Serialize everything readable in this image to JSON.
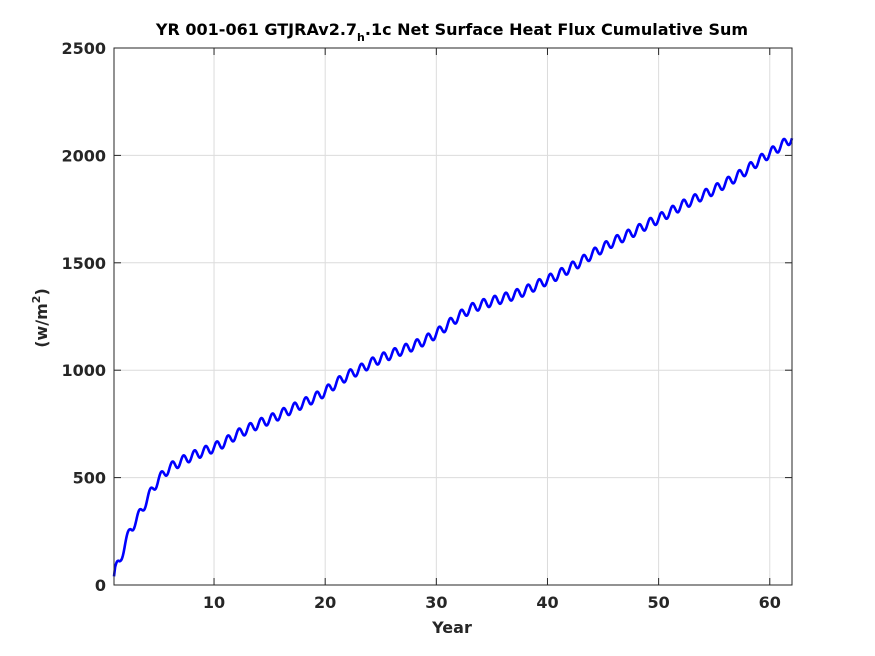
{
  "chart_data": {
    "type": "line",
    "title": {
      "part1": "YR 001-061 GTJRAv2.7",
      "subscript": "h",
      "part2": ".1c Net Surface Heat Flux  Cumulative Sum"
    },
    "xlabel": "Year",
    "ylabel": {
      "prefix": "(w/m",
      "superscript": "2",
      "suffix": ")"
    },
    "xlim": [
      1,
      62
    ],
    "ylim": [
      0,
      2500
    ],
    "xticks": [
      10,
      20,
      30,
      40,
      50,
      60
    ],
    "yticks": [
      0,
      500,
      1000,
      1500,
      2000,
      2500
    ],
    "grid": true,
    "series": [
      {
        "color": "#0000ff",
        "seasonal_amplitude": 22,
        "x": [
          1.0,
          1.1,
          1.5,
          2.0,
          2.5,
          3.0,
          3.5,
          4.0,
          4.5,
          5.0,
          5.5,
          6.0,
          7.0,
          8.0,
          9.0,
          10.0,
          11.0,
          12.0,
          13.0,
          14.0,
          15.0,
          16.0,
          17.0,
          18.0,
          19.0,
          20.0,
          21.0,
          22.0,
          23.0,
          24.0,
          25.0,
          26.0,
          27.0,
          28.0,
          29.0,
          30.0,
          31.0,
          32.0,
          33.0,
          34.0,
          35.0,
          36.0,
          37.0,
          38.0,
          39.0,
          40.0,
          41.0,
          42.0,
          43.0,
          44.0,
          45.0,
          46.0,
          47.0,
          48.0,
          49.0,
          50.0,
          51.0,
          52.0,
          53.0,
          54.0,
          55.0,
          56.0,
          57.0,
          58.0,
          59.0,
          60.0,
          61.0,
          62.0
        ],
        "y": [
          40,
          70,
          110,
          190,
          260,
          300,
          350,
          400,
          450,
          490,
          520,
          545,
          575,
          600,
          620,
          640,
          665,
          700,
          725,
          750,
          770,
          795,
          820,
          845,
          870,
          900,
          940,
          975,
          1000,
          1030,
          1055,
          1075,
          1095,
          1115,
          1140,
          1170,
          1210,
          1250,
          1285,
          1305,
          1320,
          1335,
          1350,
          1370,
          1395,
          1420,
          1445,
          1475,
          1505,
          1540,
          1570,
          1600,
          1625,
          1650,
          1680,
          1705,
          1735,
          1765,
          1790,
          1815,
          1840,
          1870,
          1900,
          1935,
          1975,
          2010,
          2045,
          2080
        ]
      }
    ]
  }
}
